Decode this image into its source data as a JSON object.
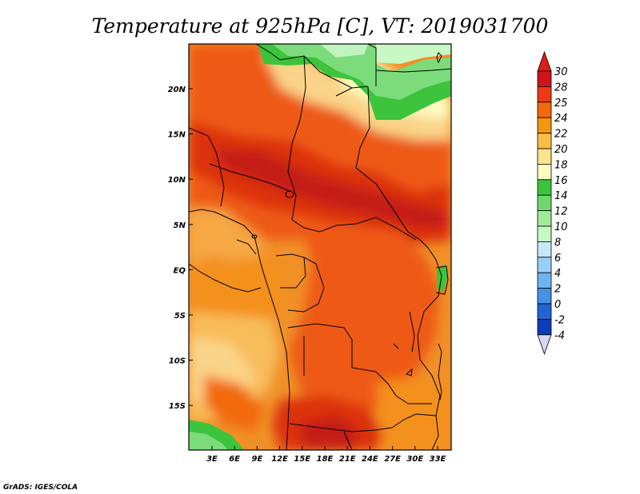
{
  "title": "Temperature at 925hPa [C], VT: 2019031700",
  "credit": "GrADS: IGES/COLA",
  "map": {
    "lon_labels": [
      "3E",
      "6E",
      "9E",
      "12E",
      "15E",
      "18E",
      "21E",
      "24E",
      "27E",
      "30E",
      "33E"
    ],
    "lat_labels": [
      "20N",
      "15N",
      "10N",
      "5N",
      "EQ",
      "5S",
      "10S",
      "15S"
    ]
  },
  "colorbar": {
    "labels": [
      "30",
      "28",
      "25",
      "24",
      "22",
      "20",
      "18",
      "16",
      "14",
      "12",
      "10",
      "8",
      "6",
      "4",
      "2",
      "0",
      "-2",
      "-4"
    ],
    "colors": [
      "#d0141e",
      "#ee3a12",
      "#f26a0c",
      "#f6960e",
      "#fbbd46",
      "#fbe48c",
      "#fcfcc0",
      "#3cc43c",
      "#6ed86e",
      "#a0ec96",
      "#c8f8c4",
      "#c8e8f8",
      "#9ad0f6",
      "#6eb2f0",
      "#4890e6",
      "#2264d4",
      "#0c3cb8",
      "#06148c"
    ],
    "top_color": "#e01e14",
    "bottom_color": "#d8d6f6"
  },
  "field_colors": {
    "warmest": "#c41c16",
    "hot": "#e0300e",
    "warm": "#ee5a12",
    "mild": "#f4901c",
    "cool": "#f8b24e",
    "cooler": "#fad488",
    "yellow": "#fcfcc0",
    "green": "#3cc43c",
    "lightgreen": "#7cdc7c",
    "palegreen": "#c0f4be"
  }
}
